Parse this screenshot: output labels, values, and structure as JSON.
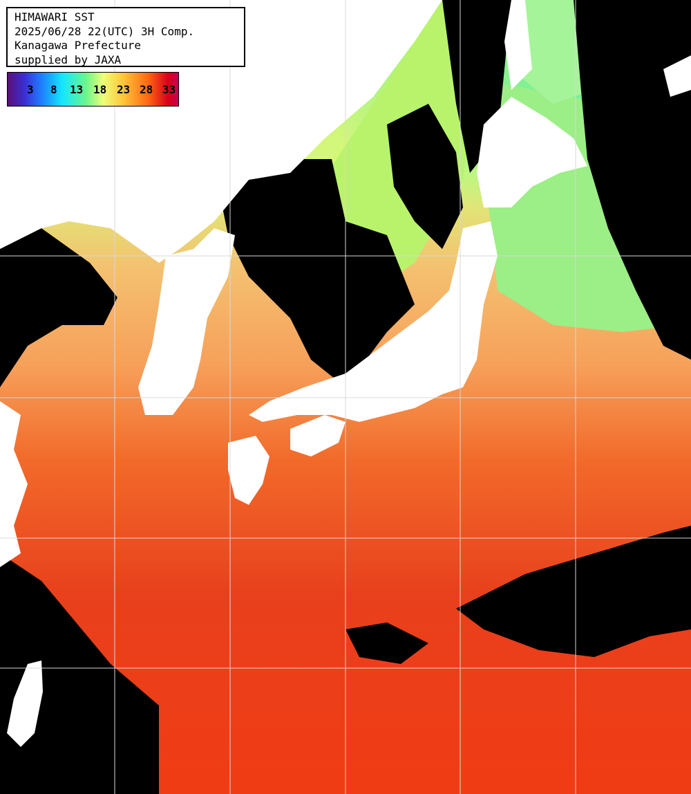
{
  "header": {
    "line1": "HIMAWARI SST",
    "line2": "2025/06/28 22(UTC) 3H Comp.",
    "line3": "Kanagawa Prefecture",
    "line4": "supplied by JAXA"
  },
  "legend": {
    "ticks": [
      "3",
      "8",
      "13",
      "18",
      "23",
      "28",
      "33"
    ],
    "colors": {
      "low": "#5a0f78",
      "cool": "#14e6ff",
      "mid": "#eefe78",
      "warm": "#ff6a14",
      "high": "#c80050"
    }
  },
  "map": {
    "land_color": "#ffffff",
    "cloud_color": "#000000",
    "grid_color": "#d8d8d8"
  }
}
